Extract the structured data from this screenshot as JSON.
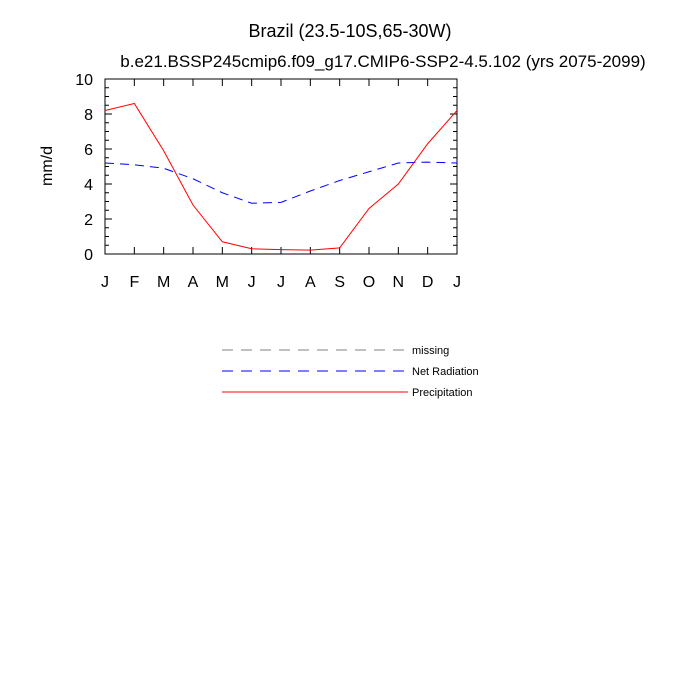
{
  "chart_data": {
    "type": "line",
    "title": "Brazil (23.5-10S,65-30W)",
    "subtitle": "b.e21.BSSP245cmip6.f09_g17.CMIP6-SSP2-4.5.102 (yrs 2075-2099)",
    "xlabel": "",
    "ylabel": "mm/d",
    "ylim": [
      0,
      10
    ],
    "yticks": [
      0,
      2,
      4,
      6,
      8,
      10
    ],
    "x": [
      0,
      1,
      2,
      3,
      4,
      5,
      6,
      7,
      8,
      9,
      10,
      11,
      12
    ],
    "categories": [
      "J",
      "F",
      "M",
      "A",
      "M",
      "J",
      "J",
      "A",
      "S",
      "O",
      "N",
      "D",
      "J"
    ],
    "series": [
      {
        "name": "Net Radiation",
        "color": "#0000ff",
        "style": "dashed",
        "values": [
          5.2,
          5.1,
          4.9,
          4.3,
          3.5,
          2.9,
          2.95,
          3.6,
          4.2,
          4.7,
          5.2,
          5.25,
          5.2
        ]
      },
      {
        "name": "Precipitation",
        "color": "#ff0000",
        "style": "solid",
        "values": [
          8.2,
          8.6,
          5.9,
          2.8,
          0.7,
          0.3,
          0.25,
          0.22,
          0.35,
          2.6,
          4.0,
          6.3,
          8.2
        ]
      }
    ],
    "legend": [
      {
        "label": "missing",
        "color": "#808080",
        "style": "dashed"
      },
      {
        "label": "Net Radiation",
        "color": "#0000ff",
        "style": "dashed"
      },
      {
        "label": "Precipitation",
        "color": "#ff0000",
        "style": "solid"
      }
    ],
    "grid": false,
    "legend_position": "below"
  }
}
